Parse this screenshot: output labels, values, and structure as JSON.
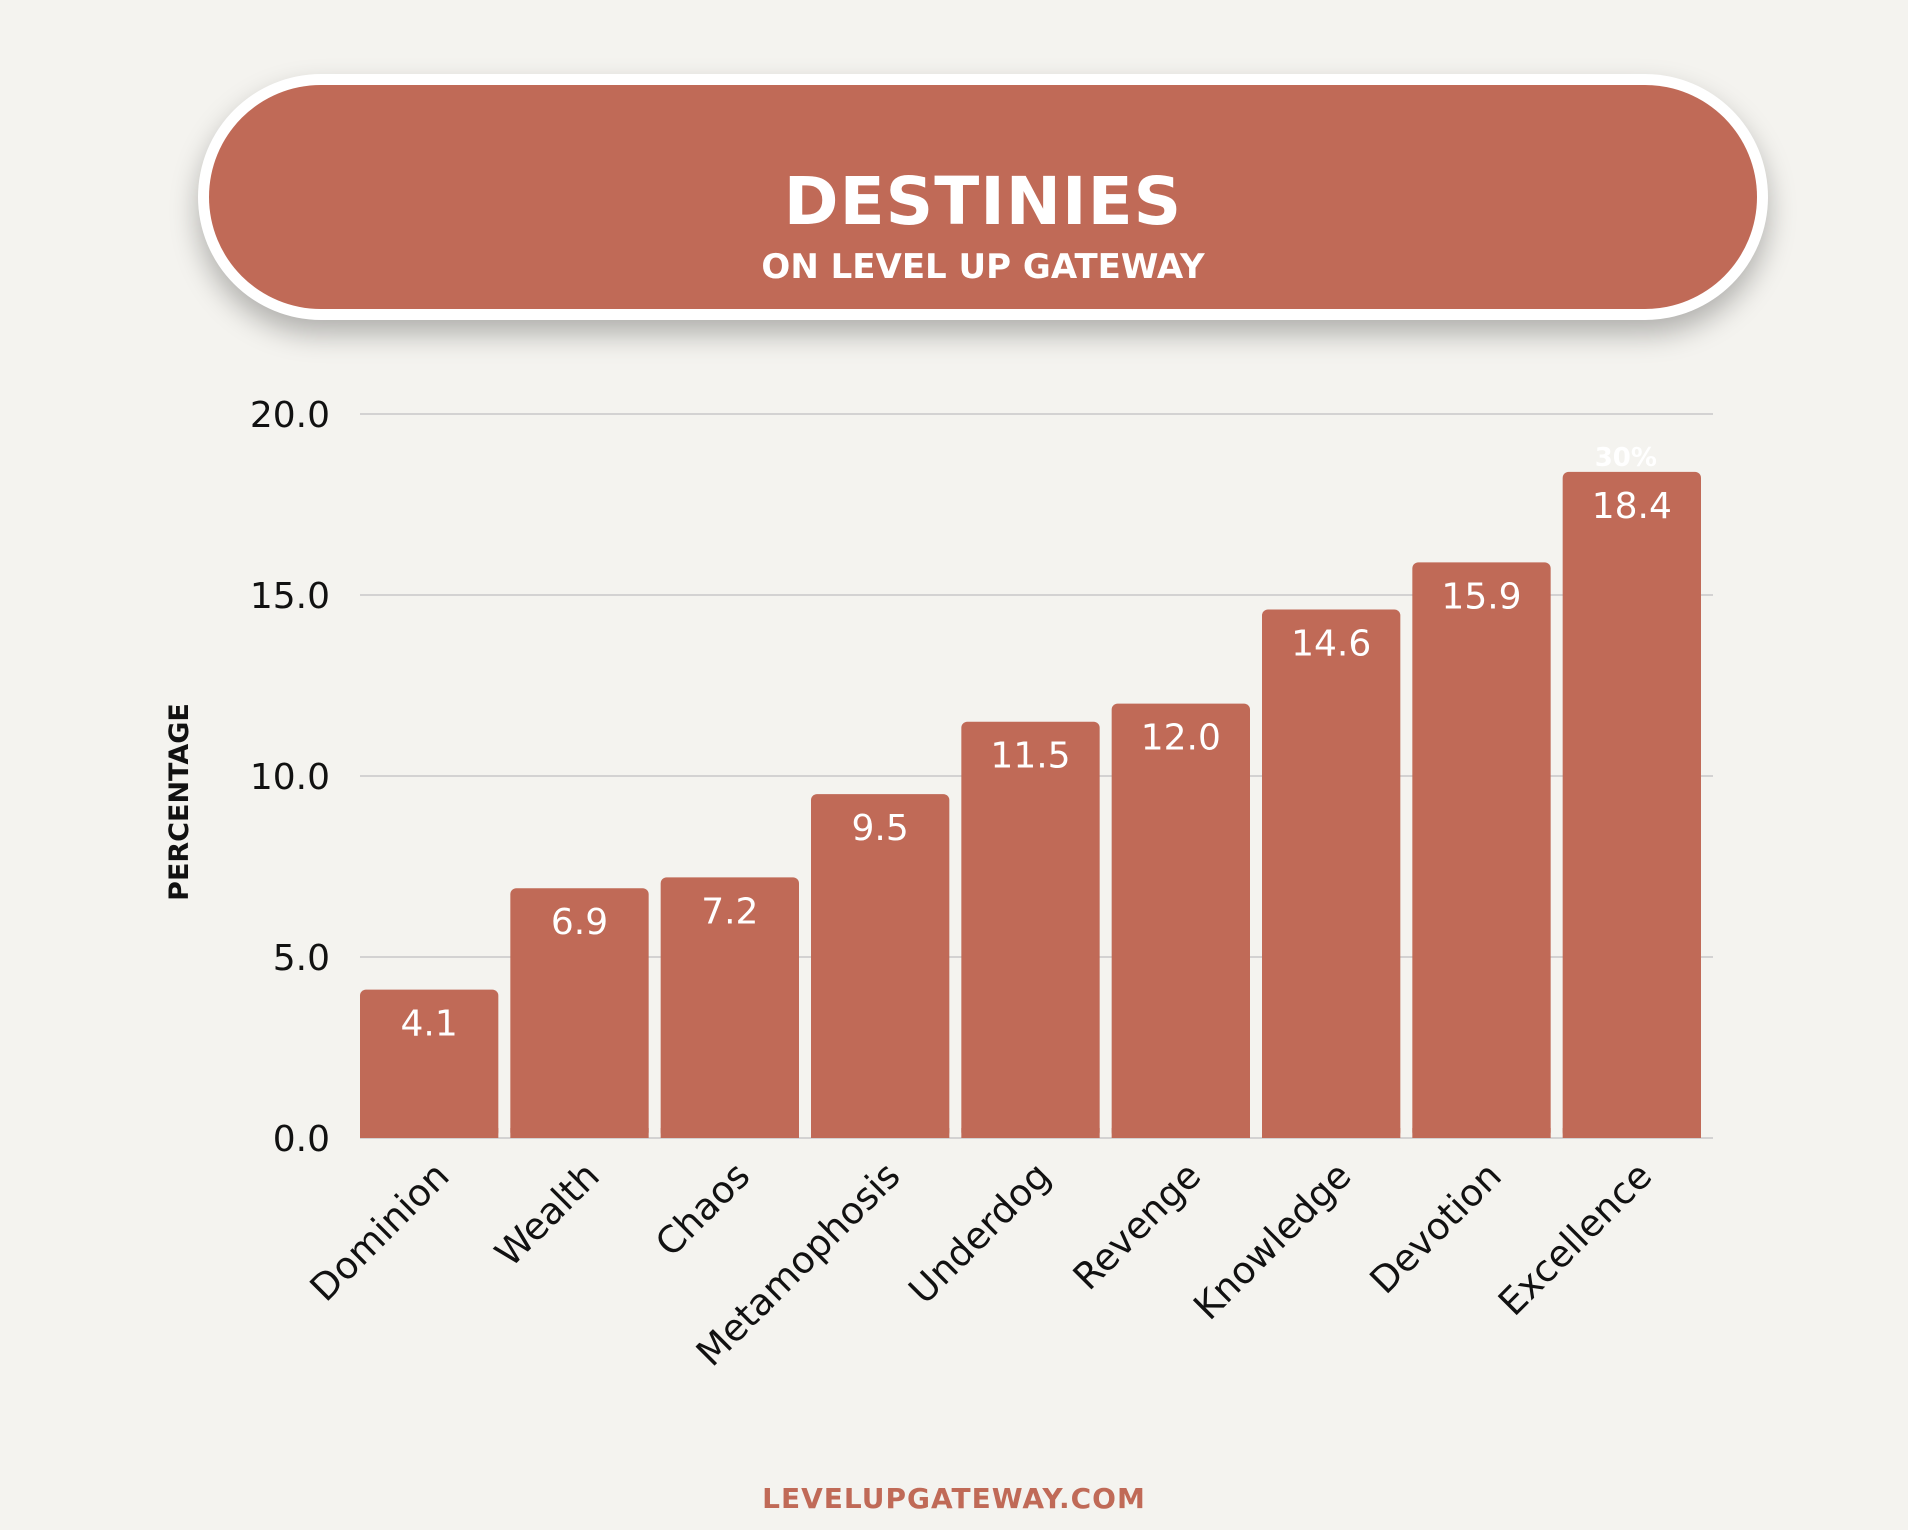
{
  "title": "DESTINIES",
  "subtitle": "ON LEVEL UP GATEWAY",
  "footer": "LEVELUPGATEWAY.COM",
  "colors": {
    "bar": "#c06a57",
    "background": "#f4f3ef",
    "grid": "#c8c8c8",
    "text": "#111111",
    "label_on_bar": "#ffffff"
  },
  "chart_data": {
    "type": "bar",
    "categories": [
      "Dominion",
      "Wealth",
      "Chaos",
      "Metamophosis",
      "Underdog",
      "Revenge",
      "Knowledge",
      "Devotion",
      "Excellence"
    ],
    "values": [
      4.1,
      6.9,
      7.2,
      9.5,
      11.5,
      12.0,
      14.6,
      15.9,
      18.4
    ],
    "value_labels": [
      "4.1",
      "6.9",
      "7.2",
      "9.5",
      "11.5",
      "12.0",
      "14.6",
      "15.9",
      "18.4"
    ],
    "ylabel": "PERCENTAGE",
    "xlabel": "",
    "ylim": [
      0,
      20
    ],
    "yticks": [
      "0.0",
      "5.0",
      "10.0",
      "15.0",
      "20.0"
    ],
    "ytick_values": [
      0,
      5,
      10,
      15,
      20
    ],
    "grid": true,
    "annotation": "30%"
  }
}
